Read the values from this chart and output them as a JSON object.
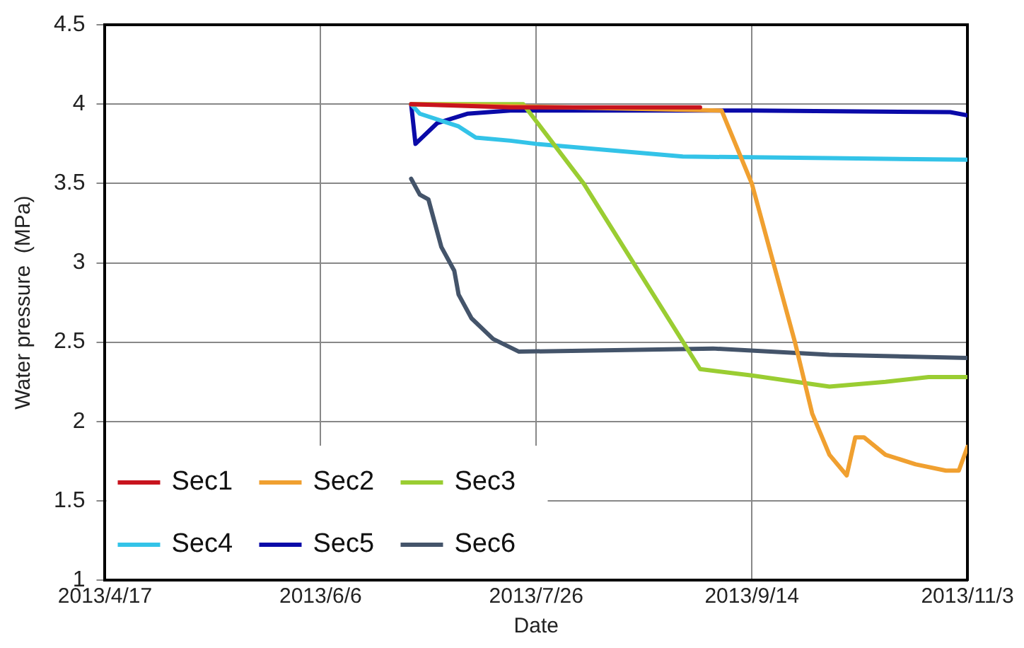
{
  "chart_data": {
    "type": "line",
    "xlabel": "Date",
    "ylabel": "Water pressure  (MPa)",
    "xlim": [
      "2013-04-17",
      "2013-11-03"
    ],
    "xticks": [
      {
        "value": "2013-04-17",
        "label": "2013/4/17"
      },
      {
        "value": "2013-06-06",
        "label": "2013/6/6"
      },
      {
        "value": "2013-07-26",
        "label": "2013/7/26"
      },
      {
        "value": "2013-09-14",
        "label": "2013/9/14"
      },
      {
        "value": "2013-11-03",
        "label": "2013/11/3"
      }
    ],
    "ylim": [
      1,
      4.5
    ],
    "yticks": [
      1,
      1.5,
      2,
      2.5,
      3,
      3.5,
      4,
      4.5
    ],
    "grid": true,
    "legend": "bottom left",
    "marker": "none",
    "line_style": "solid",
    "series": [
      {
        "name": "Sec1",
        "color": "#c8141e",
        "x": [
          "2013-06-27",
          "2013-07-20",
          "2013-09-02"
        ],
        "values": [
          4.0,
          3.98,
          3.98
        ]
      },
      {
        "name": "Sec2",
        "color": "#f0a030",
        "x": [
          "2013-06-27",
          "2013-09-07",
          "2013-09-14",
          "2013-09-24",
          "2013-09-28",
          "2013-10-02",
          "2013-10-06",
          "2013-10-08",
          "2013-10-10",
          "2013-10-15",
          "2013-10-22",
          "2013-10-29",
          "2013-11-01",
          "2013-11-03"
        ],
        "values": [
          4.0,
          3.96,
          3.5,
          2.5,
          2.05,
          1.79,
          1.66,
          1.9,
          1.9,
          1.79,
          1.73,
          1.69,
          1.69,
          1.84
        ]
      },
      {
        "name": "Sec3",
        "color": "#9acd32",
        "x": [
          "2013-06-27",
          "2013-07-23",
          "2013-08-06",
          "2013-09-02",
          "2013-09-14",
          "2013-10-02",
          "2013-10-15",
          "2013-10-25",
          "2013-11-03"
        ],
        "values": [
          4.0,
          4.0,
          3.5,
          2.33,
          2.29,
          2.22,
          2.25,
          2.28,
          2.28
        ]
      },
      {
        "name": "Sec4",
        "color": "#33c3e8",
        "x": [
          "2013-06-27",
          "2013-06-29",
          "2013-07-08",
          "2013-07-12",
          "2013-07-20",
          "2013-07-26",
          "2013-08-29",
          "2013-10-02",
          "2013-11-03"
        ],
        "values": [
          4.0,
          3.94,
          3.86,
          3.79,
          3.77,
          3.75,
          3.67,
          3.66,
          3.65
        ]
      },
      {
        "name": "Sec5",
        "color": "#0a0aa8",
        "x": [
          "2013-06-27",
          "2013-06-28",
          "2013-07-03",
          "2013-07-10",
          "2013-07-20",
          "2013-09-14",
          "2013-10-30",
          "2013-11-03"
        ],
        "values": [
          4.0,
          3.75,
          3.88,
          3.94,
          3.96,
          3.96,
          3.95,
          3.93
        ]
      },
      {
        "name": "Sec6",
        "color": "#44546a",
        "x": [
          "2013-06-27",
          "2013-06-29",
          "2013-07-01",
          "2013-07-04",
          "2013-07-07",
          "2013-07-08",
          "2013-07-11",
          "2013-07-16",
          "2013-07-22",
          "2013-09-05",
          "2013-10-02",
          "2013-11-03"
        ],
        "values": [
          3.53,
          3.43,
          3.4,
          3.1,
          2.95,
          2.8,
          2.65,
          2.52,
          2.44,
          2.46,
          2.42,
          2.4
        ]
      }
    ]
  }
}
